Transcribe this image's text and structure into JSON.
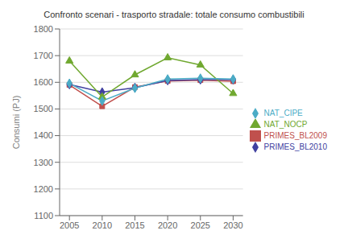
{
  "chart_data": {
    "type": "line",
    "title": "Confronto scenari - trasporto stradale: totale consumo combustibili",
    "ylabel": "Consumi (PJ)",
    "x": [
      2005,
      2010,
      2015,
      2020,
      2025,
      2030
    ],
    "xlim": [
      2003.5,
      2031.5
    ],
    "xticks": [
      2005,
      2010,
      2015,
      2020,
      2025,
      2030
    ],
    "ylim": [
      1100,
      1800
    ],
    "yticks": [
      1100,
      1200,
      1300,
      1400,
      1500,
      1600,
      1700,
      1800
    ],
    "grid": "y",
    "legend": "right",
    "series": [
      {
        "name": "PRIMES_BL2009",
        "color": "#C0504D",
        "marker": "square",
        "values": [
          1590,
          1510,
          1582,
          1605,
          1608,
          1604
        ]
      },
      {
        "name": "PRIMES_BL2010",
        "color": "#4040A0",
        "marker": "diamond",
        "values": [
          1592,
          1563,
          1580,
          1607,
          1610,
          1610
        ]
      },
      {
        "name": "NAT_NOCP",
        "color": "#70A830",
        "marker": "triangle",
        "values": [
          1680,
          1545,
          1628,
          1692,
          1665,
          1558
        ]
      },
      {
        "name": "NAT_CIPE",
        "color": "#4BACC6",
        "marker": "diamond",
        "values": [
          1596,
          1530,
          1578,
          1612,
          1615,
          1612
        ]
      }
    ]
  }
}
